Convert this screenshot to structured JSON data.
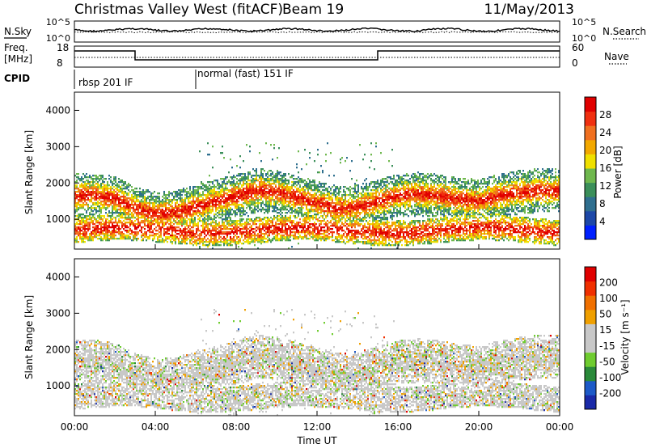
{
  "header": {
    "station": "Christmas Valley West (fitACF)",
    "beam": "Beam 19",
    "date": "11/May/2013"
  },
  "status_panels": {
    "nsky_label": "N.Sky",
    "nsearch_label": "N.Search",
    "noise_ticks_left": [
      "10^5",
      "10^0"
    ],
    "noise_ticks_right": [
      "10^5",
      "10^0"
    ],
    "freq_label_1": "Freq.",
    "freq_label_2": "[MHz]",
    "freq_ticks": [
      "18",
      "8"
    ],
    "nave_label": "Nave",
    "nave_ticks": [
      "60",
      "0"
    ],
    "cpid_label": "CPID",
    "cpid_segments": [
      {
        "start_hour": 0,
        "label": "rbsp 201 IF"
      },
      {
        "start_hour": 6,
        "label": "normal (fast) 151 IF"
      }
    ]
  },
  "chart_data": [
    {
      "type": "heatmap",
      "name": "power",
      "ylabel": "Slant Range [km]",
      "yticks": [
        "1000",
        "2000",
        "3000",
        "4000"
      ],
      "ylim": [
        180,
        4500
      ],
      "colorbar_label": "Power [dB]",
      "colorbar_ticks": [
        "28",
        "24",
        "20",
        "16",
        "12",
        "8",
        "4"
      ],
      "colorbar_colors": [
        "#0020ff",
        "#1d48a8",
        "#2f6f8f",
        "#3b8f5a",
        "#6fb84e",
        "#f0e000",
        "#f2a800",
        "#f07020",
        "#f03010",
        "#e00000"
      ],
      "bands": [
        {
          "hours": [
            0,
            1,
            2,
            3,
            4,
            5,
            6,
            7,
            8,
            9,
            10,
            11,
            12,
            13,
            14,
            15,
            16,
            17,
            18,
            19,
            20,
            21,
            22,
            23,
            24
          ],
          "center_km": [
            1650,
            1680,
            1580,
            1300,
            1150,
            1200,
            1350,
            1500,
            1650,
            1800,
            1750,
            1600,
            1450,
            1300,
            1350,
            1500,
            1650,
            1700,
            1650,
            1550,
            1500,
            1650,
            1750,
            1800,
            1800
          ],
          "width_km": 600,
          "power_db": 24
        }
      ]
    },
    {
      "type": "heatmap",
      "name": "velocity",
      "ylabel": "Slant Range [km]",
      "yticks": [
        "1000",
        "2000",
        "3000",
        "4000"
      ],
      "ylim": [
        180,
        4500
      ],
      "colorbar_label": "Velocity [m s⁻¹]",
      "colorbar_ticks": [
        "200",
        "100",
        "50",
        "15",
        "-15",
        "-50",
        "-100",
        "-200"
      ],
      "colorbar_colors": [
        "#1a2aa8",
        "#1d5ac8",
        "#2a8a3a",
        "#6fcc30",
        "#c8c8c8",
        "#c8c8c8",
        "#f0a000",
        "#f07000",
        "#f03000",
        "#e00000"
      ]
    }
  ],
  "xaxis": {
    "ticks": [
      "00:00",
      "04:00",
      "08:00",
      "12:00",
      "16:00",
      "20:00",
      "00:00"
    ],
    "label": "Time UT"
  }
}
